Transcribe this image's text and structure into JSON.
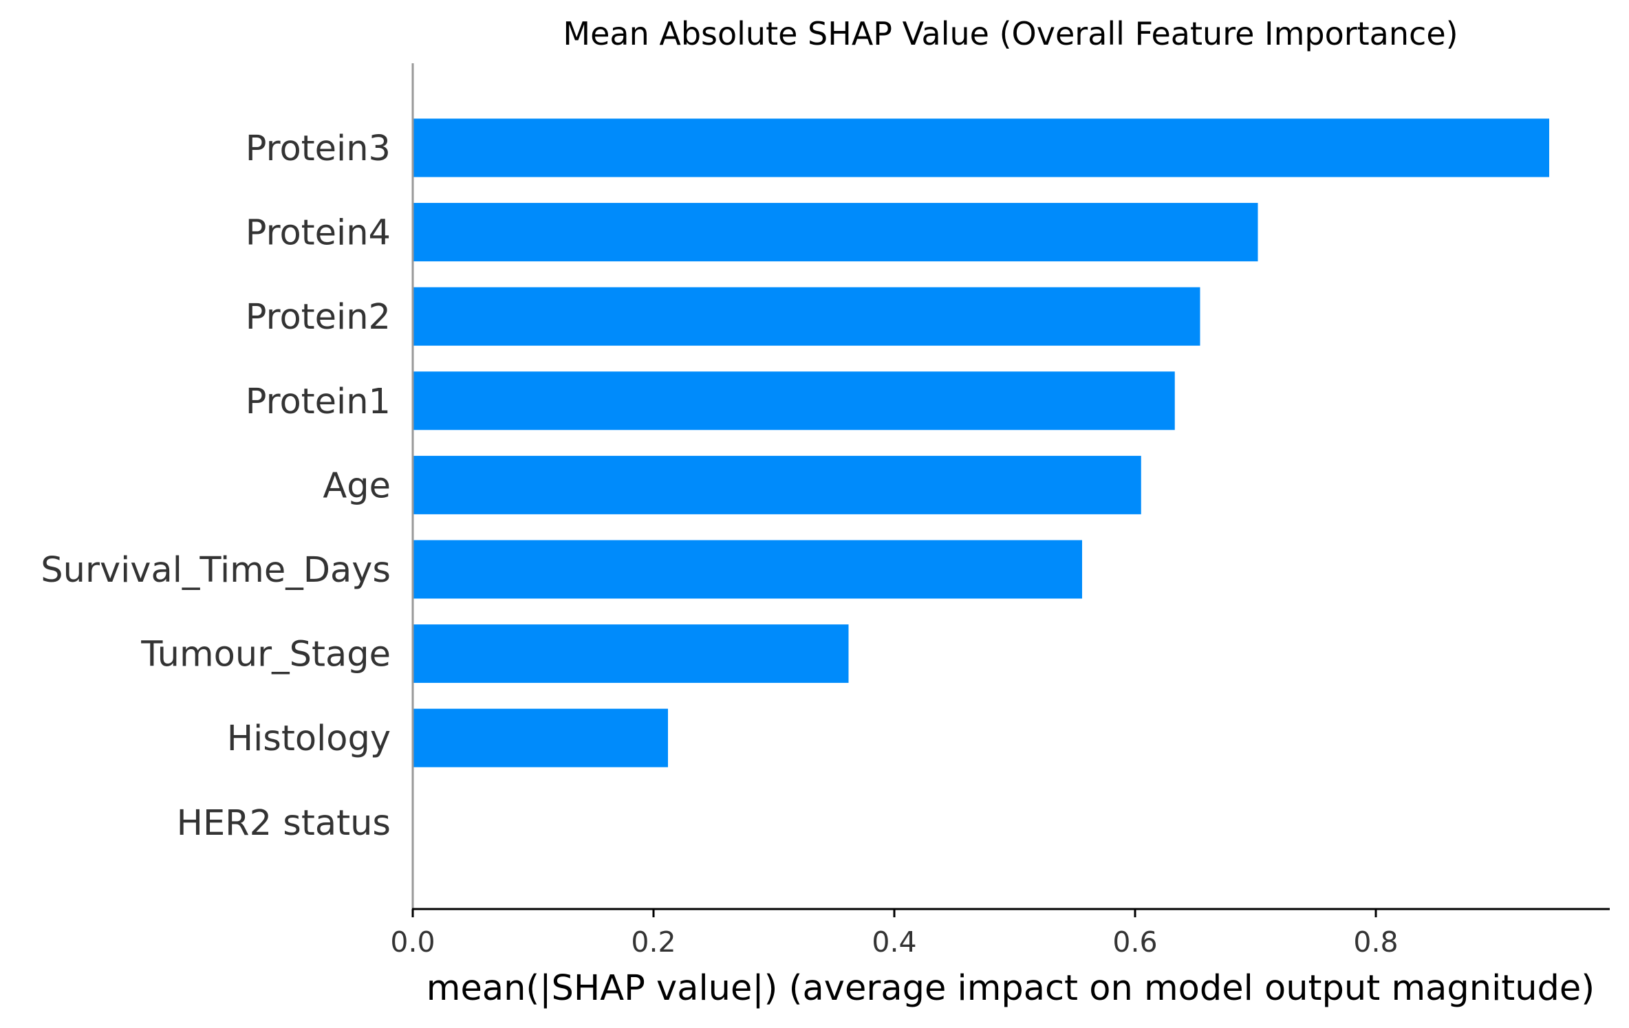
{
  "chart_data": {
    "type": "bar",
    "orientation": "horizontal",
    "title": "Mean Absolute SHAP Value (Overall Feature Importance)",
    "xlabel": "mean(|SHAP value|) (average impact on model output magnitude)",
    "ylabel": "",
    "categories": [
      "Protein3",
      "Protein4",
      "Protein2",
      "Protein1",
      "Age",
      "Survival_Time_Days",
      "Tumour_Stage",
      "Histology",
      "HER2 status"
    ],
    "values": [
      0.944,
      0.702,
      0.654,
      0.633,
      0.605,
      0.556,
      0.362,
      0.212,
      0.0
    ],
    "xlim": [
      0,
      0.99
    ],
    "xticks": [
      0.0,
      0.2,
      0.4,
      0.6,
      0.8
    ],
    "xtick_labels": [
      "0.0",
      "0.2",
      "0.4",
      "0.6",
      "0.8"
    ],
    "bar_color": "#008bfb",
    "grid": false
  }
}
